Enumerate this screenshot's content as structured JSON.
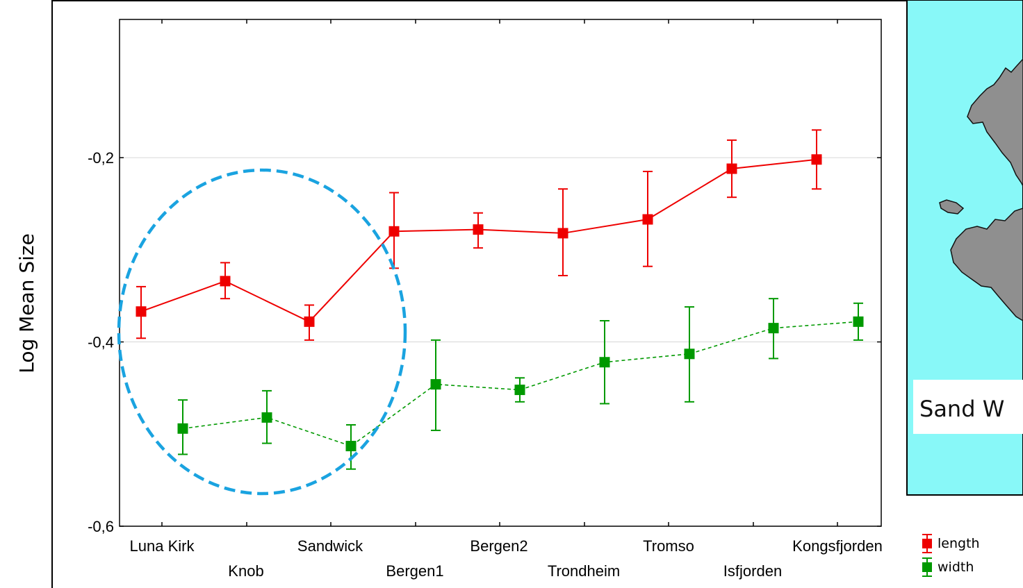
{
  "chart_data": {
    "type": "line",
    "ylabel": "Log Mean Size",
    "ylim": [
      -0.6,
      -0.05
    ],
    "yticks": [
      -0.6,
      -0.4,
      -0.2
    ],
    "ytick_labels": [
      "-0,6",
      "-0,4",
      "-0,2"
    ],
    "categories": [
      "Luna Kirk",
      "Knob",
      "Sandwick",
      "Bergen1",
      "Bergen2",
      "Trondheim",
      "Tromso",
      "Isfjorden",
      "Kongsfjorden"
    ],
    "grid": "horizontal",
    "legend_position": "bottom-right",
    "series": [
      {
        "name": "length",
        "color": "#ee0000",
        "line_style": "solid",
        "x": [
          1,
          2,
          3,
          4,
          5,
          6,
          7,
          8,
          9
        ],
        "values": [
          -0.367,
          -0.334,
          -0.378,
          -0.28,
          -0.278,
          -0.282,
          -0.267,
          -0.212,
          -0.202
        ],
        "lower": [
          -0.396,
          -0.353,
          -0.398,
          -0.32,
          -0.298,
          -0.328,
          -0.318,
          -0.243,
          -0.234
        ],
        "upper": [
          -0.34,
          -0.314,
          -0.36,
          -0.238,
          -0.26,
          -0.234,
          -0.215,
          -0.181,
          -0.17
        ]
      },
      {
        "name": "width",
        "color": "#009900",
        "line_style": "dashed",
        "x": [
          1,
          2,
          3,
          4,
          5,
          6,
          7,
          8,
          9
        ],
        "values": [
          -0.494,
          -0.482,
          -0.513,
          -0.446,
          -0.452,
          -0.422,
          -0.413,
          -0.385,
          -0.378
        ],
        "lower": [
          -0.522,
          -0.51,
          -0.538,
          -0.496,
          -0.465,
          -0.467,
          -0.465,
          -0.418,
          -0.398
        ],
        "upper": [
          -0.463,
          -0.453,
          -0.49,
          -0.398,
          -0.439,
          -0.377,
          -0.362,
          -0.353,
          -0.358
        ]
      }
    ]
  },
  "inset": {
    "caption": "Sand W",
    "background": "#88f8f8",
    "land_color": "#8f8f8f"
  },
  "annotation": {
    "shape": "dashed-ellipse",
    "color": "#1aa3e0"
  }
}
